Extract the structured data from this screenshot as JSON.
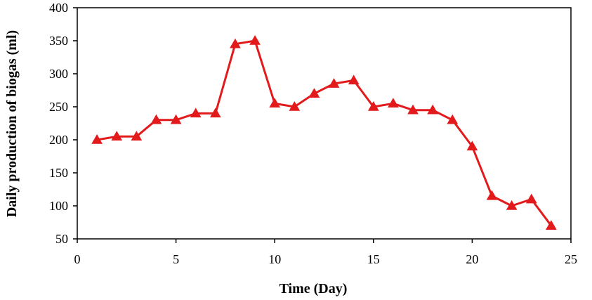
{
  "chart_data": {
    "type": "line",
    "title": "",
    "xlabel": "Time (Day)",
    "ylabel": "Daily production of biogas (ml)",
    "xlim": [
      0,
      25
    ],
    "ylim": [
      50,
      400
    ],
    "xticks": [
      0,
      5,
      10,
      15,
      20,
      25
    ],
    "yticks": [
      50,
      100,
      150,
      200,
      250,
      300,
      350,
      400
    ],
    "grid": false,
    "legend": "none",
    "line_color": "#e31a1c",
    "marker": "triangle",
    "series": [
      {
        "x": [
          1,
          2,
          3,
          4,
          5,
          6,
          7,
          8,
          9,
          10,
          11,
          12,
          13,
          14,
          15,
          16,
          17,
          18,
          19,
          20,
          21,
          22,
          23,
          24
        ],
        "values": [
          200,
          205,
          205,
          230,
          230,
          240,
          240,
          345,
          350,
          255,
          250,
          270,
          285,
          290,
          250,
          255,
          245,
          245,
          230,
          190,
          115,
          100,
          110,
          70
        ]
      }
    ]
  }
}
